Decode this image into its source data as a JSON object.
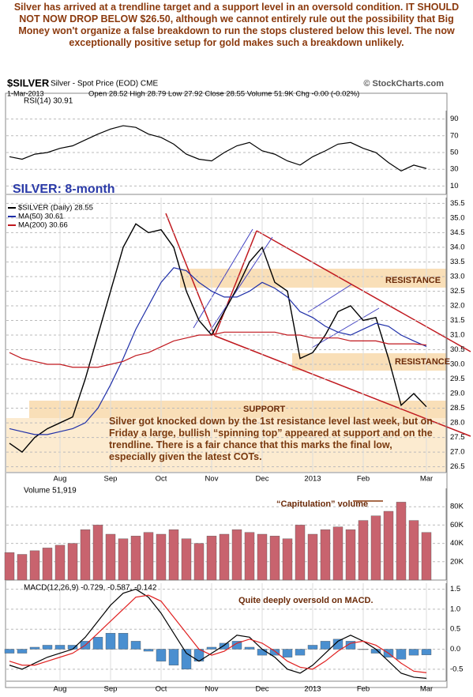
{
  "intro": "Silver has arrived at a trendline target and a support level in an oversold condition. IT SHOULD NOT NOW DROP BELOW $26.50, although we cannot entirely rule out the possibility that Big Money won't organize a false breakdown to run the stops clustered below this level. The now exceptionally positive setup for gold makes such a breakdown unlikely.",
  "header": {
    "symbol": "$SILVER",
    "description": "Silver - Spot Price (EOD) CME",
    "source": "© StockCharts.com",
    "date": "1-Mar-2013",
    "quote": "Open 28.52 High 28.79 Low 27.92 Close 28.55 Volume 51.9K Chg -0.00 (-0.02%)"
  },
  "chart_data": [
    {
      "type": "line",
      "title": "RSI(14) 30.91",
      "ylim": [
        0,
        100
      ],
      "yticks": [
        10,
        30,
        50,
        70,
        90
      ],
      "grid": true,
      "series": [
        {
          "name": "RSI(14)",
          "color": "#000000",
          "values": [
            45,
            42,
            48,
            50,
            55,
            58,
            65,
            72,
            78,
            82,
            80,
            72,
            68,
            60,
            48,
            42,
            40,
            50,
            58,
            62,
            52,
            48,
            40,
            35,
            45,
            52,
            60,
            62,
            55,
            50,
            38,
            28,
            35,
            30.91
          ]
        }
      ]
    },
    {
      "type": "line",
      "title": "SILVER: 8-month",
      "categories": [
        null,
        null,
        null,
        null,
        "Aug",
        null,
        null,
        null,
        "Sep",
        null,
        null,
        null,
        "Oct",
        null,
        null,
        null,
        "Nov",
        null,
        null,
        null,
        "Dec",
        null,
        null,
        null,
        "2013",
        null,
        null,
        null,
        "Feb",
        null,
        null,
        null,
        null,
        "Mar"
      ],
      "ylim": [
        26.3,
        35.7
      ],
      "yticks": [
        26.5,
        {
          "value": 27,
          "label": "27.0"
        },
        27.5,
        {
          "value": 28,
          "label": "28.0"
        },
        28.5,
        {
          "value": 29,
          "label": "29.0"
        },
        29.5,
        {
          "value": 30,
          "label": "30.0"
        },
        30.5,
        {
          "value": 31,
          "label": "31.0"
        },
        31.5,
        {
          "value": 32,
          "label": "32.0"
        },
        32.5,
        {
          "value": 33,
          "label": "33.0"
        },
        33.5,
        {
          "value": 34,
          "label": "34.0"
        },
        34.5,
        {
          "value": 35,
          "label": "35.0"
        },
        35.5
      ],
      "grid": true,
      "series": [
        {
          "name": "$SILVER (Daily) 28.55",
          "color": "#000000",
          "values": [
            27.3,
            27.0,
            27.5,
            27.8,
            28.0,
            28.2,
            29.5,
            31.0,
            32.5,
            34.0,
            34.8,
            34.5,
            34.6,
            34.0,
            32.5,
            31.5,
            31.0,
            31.8,
            32.6,
            33.5,
            34.0,
            32.8,
            32.5,
            30.2,
            30.4,
            31.0,
            31.8,
            32.0,
            31.5,
            31.6,
            30.2,
            28.6,
            29.0,
            28.55
          ]
        },
        {
          "name": "MA(50) 30.61",
          "color": "#1f2fa8",
          "values": [
            27.8,
            27.7,
            27.6,
            27.6,
            27.7,
            27.8,
            28.0,
            28.5,
            29.3,
            30.2,
            31.2,
            32.0,
            32.8,
            33.3,
            33.2,
            32.8,
            32.5,
            32.3,
            32.3,
            32.5,
            32.8,
            32.6,
            32.3,
            31.8,
            31.6,
            31.3,
            31.1,
            31.0,
            31.2,
            31.4,
            31.3,
            31.0,
            30.8,
            30.61
          ]
        },
        {
          "name": "MA(200) 30.66",
          "color": "#c0181e",
          "values": [
            30.4,
            30.2,
            30.1,
            30.0,
            30.0,
            29.9,
            29.9,
            29.9,
            30.0,
            30.1,
            30.3,
            30.4,
            30.6,
            30.8,
            30.9,
            31.0,
            31.0,
            31.1,
            31.1,
            31.1,
            31.1,
            31.1,
            31.0,
            31.0,
            30.9,
            30.9,
            30.9,
            30.8,
            30.8,
            30.8,
            30.7,
            30.7,
            30.7,
            30.66
          ]
        }
      ],
      "annotations": [
        "RESISTANCE",
        "RESISTANCE",
        "SUPPORT"
      ],
      "comment": "Silver got knocked down by the 1st resistance level last week, but on Friday a large, bullish “spinning top” appeared at support and on the trendline. There is a fair chance that this marks the final low, especially given the latest COTs."
    },
    {
      "type": "bar",
      "title": "Volume 51,919",
      "ylim": [
        0,
        100000
      ],
      "yticks": [
        {
          "value": 20000,
          "label": "20K"
        },
        {
          "value": 40000,
          "label": "40K"
        },
        {
          "value": 60000,
          "label": "60K"
        },
        {
          "value": 80000,
          "label": "80K"
        }
      ],
      "grid": true,
      "series": [
        {
          "name": "Volume",
          "color": "#c8636e",
          "values": [
            30000,
            28000,
            32000,
            35000,
            38000,
            40000,
            55000,
            60000,
            50000,
            45000,
            48000,
            52000,
            50000,
            55000,
            45000,
            40000,
            48000,
            50000,
            55000,
            52000,
            50000,
            48000,
            45000,
            60000,
            50000,
            55000,
            58000,
            55000,
            65000,
            70000,
            75000,
            85000,
            65000,
            51919
          ]
        }
      ],
      "annotations": [
        "“Capitulation” volume"
      ]
    },
    {
      "type": "line",
      "title": "MACD(12,26,9) -0.729, -0.587, -0.142",
      "categories": [
        null,
        null,
        null,
        null,
        "Aug",
        null,
        null,
        null,
        "Sep",
        null,
        null,
        null,
        "Oct",
        null,
        null,
        null,
        "Nov",
        null,
        null,
        null,
        "Dec",
        null,
        null,
        null,
        "2013",
        null,
        null,
        null,
        "Feb",
        null,
        null,
        null,
        null,
        "Mar"
      ],
      "ylim": [
        -0.8,
        1.65
      ],
      "yticks": [
        -0.5,
        {
          "value": 0,
          "label": "0.0"
        },
        0.5,
        {
          "value": 1,
          "label": "1.0"
        },
        1.5
      ],
      "grid": true,
      "series": [
        {
          "name": "Histogram",
          "type": "bar",
          "color": "#4a8fd0",
          "values": [
            -0.1,
            -0.1,
            0.05,
            0.1,
            0.1,
            0.1,
            0.2,
            0.3,
            0.4,
            0.4,
            0.2,
            -0.05,
            -0.3,
            -0.4,
            -0.5,
            -0.3,
            0.05,
            0.15,
            0.2,
            0.05,
            -0.15,
            -0.15,
            -0.2,
            -0.15,
            0.1,
            0.2,
            0.25,
            0.2,
            0,
            -0.1,
            -0.2,
            -0.25,
            -0.15,
            -0.142
          ]
        },
        {
          "name": "MACD",
          "color": "#000000",
          "values": [
            -0.4,
            -0.5,
            -0.35,
            -0.2,
            -0.1,
            0.0,
            0.3,
            0.7,
            1.1,
            1.4,
            1.5,
            1.3,
            0.9,
            0.4,
            -0.1,
            -0.3,
            -0.1,
            0.1,
            0.35,
            0.3,
            0.0,
            -0.2,
            -0.5,
            -0.6,
            -0.4,
            -0.1,
            0.2,
            0.35,
            0.2,
            0.0,
            -0.3,
            -0.6,
            -0.7,
            -0.729
          ]
        },
        {
          "name": "Signal",
          "color": "#e02020",
          "values": [
            -0.3,
            -0.4,
            -0.4,
            -0.3,
            -0.2,
            -0.1,
            0.1,
            0.4,
            0.7,
            1.0,
            1.3,
            1.35,
            1.2,
            0.8,
            0.4,
            0.0,
            -0.15,
            -0.05,
            0.15,
            0.25,
            0.15,
            -0.05,
            -0.3,
            -0.45,
            -0.5,
            -0.3,
            -0.05,
            0.15,
            0.2,
            0.1,
            -0.1,
            -0.35,
            -0.55,
            -0.587
          ]
        }
      ],
      "annotations": [
        "Quite deeply oversold on MACD."
      ]
    }
  ]
}
